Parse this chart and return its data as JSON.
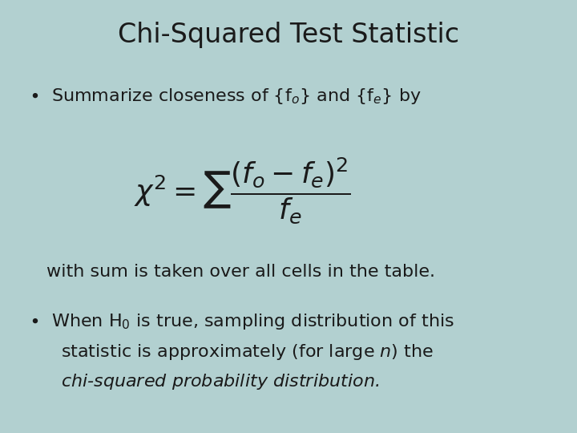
{
  "title": "Chi-Squared Test Statistic",
  "title_fontsize": 24,
  "background_color": "#b2d0d0",
  "text_color": "#1a1a1a",
  "body_fontsize": 16,
  "formula_fontsize": 26,
  "note_fontsize": 16
}
